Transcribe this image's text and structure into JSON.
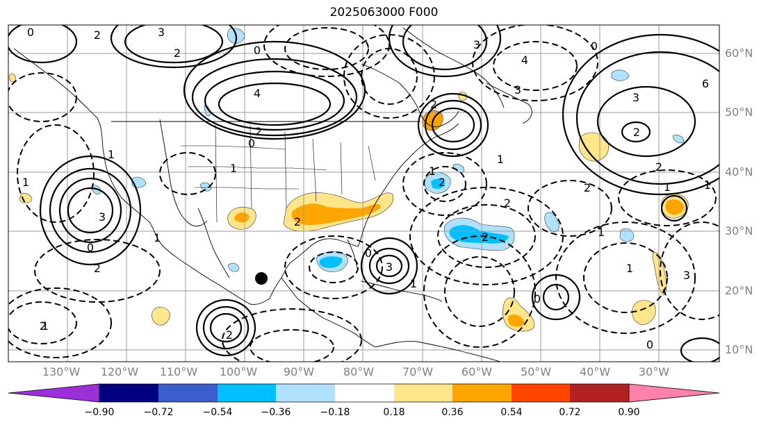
{
  "title": "2025063000 F000",
  "lat_labels": [
    "60°N",
    "50°N",
    "40°N",
    "30°N",
    "20°N",
    "10°N"
  ],
  "lon_labels": [
    "130°W",
    "120°W",
    "110°W",
    "100°W",
    "90°W",
    "80°W",
    "70°W",
    "60°W",
    "50°W",
    "40°W",
    "30°W"
  ],
  "colorbar": {
    "ticks": [
      "−0.90",
      "−0.72",
      "−0.54",
      "−0.36",
      "−0.18",
      "0.18",
      "0.36",
      "0.54",
      "0.72",
      "0.90"
    ],
    "colors": [
      "#9b30d8",
      "#000080",
      "#3a5fcd",
      "#00bfff",
      "#b0e2ff",
      "#ffffff",
      "#ffe68a",
      "#ffa500",
      "#ff4500",
      "#b22222",
      "#ff82ab"
    ]
  },
  "contour_labels": [
    "3",
    "0",
    "2",
    "0",
    "4",
    "1",
    "3",
    "0",
    "2",
    "1",
    "2",
    "3",
    "1",
    "0",
    "1",
    "2",
    "2",
    "3",
    "4",
    "6",
    "3",
    "2",
    "2",
    "1",
    "0",
    "1",
    "1",
    "2",
    "2",
    "3",
    "1",
    "0",
    "2",
    "1",
    "1",
    "2",
    "0",
    "2",
    "1",
    "3",
    "2",
    "0",
    "1",
    "2"
  ],
  "marker": "point"
}
